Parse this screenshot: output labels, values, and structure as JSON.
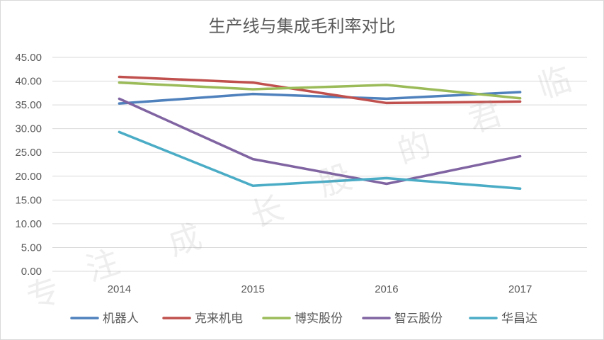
{
  "chart_data": {
    "type": "line",
    "title": "生产线与集成毛利率对比",
    "xlabel": "",
    "ylabel": "",
    "categories": [
      "2014",
      "2015",
      "2016",
      "2017"
    ],
    "ylim": [
      0,
      45
    ],
    "yticks": [
      "0.00",
      "5.00",
      "10.00",
      "15.00",
      "20.00",
      "25.00",
      "30.00",
      "35.00",
      "40.00",
      "45.00"
    ],
    "grid": true,
    "legend_position": "bottom",
    "series": [
      {
        "name": "机器人",
        "color": "#4f81bd",
        "values": [
          35.3,
          37.3,
          36.3,
          37.7
        ]
      },
      {
        "name": "克来机电",
        "color": "#c0504d",
        "values": [
          40.9,
          39.7,
          35.4,
          35.7
        ]
      },
      {
        "name": "博实股份",
        "color": "#9bbb59",
        "values": [
          39.7,
          38.3,
          39.2,
          36.4
        ]
      },
      {
        "name": "智云股份",
        "color": "#8064a2",
        "values": [
          36.3,
          23.6,
          18.4,
          24.2
        ]
      },
      {
        "name": "华昌达",
        "color": "#4bacc6",
        "values": [
          29.3,
          18.0,
          19.6,
          17.4
        ]
      }
    ]
  },
  "watermark": {
    "chars": [
      "专",
      "注",
      "成",
      "长",
      "股",
      "的",
      "君",
      "临"
    ],
    "color": "#9a9a9a"
  }
}
